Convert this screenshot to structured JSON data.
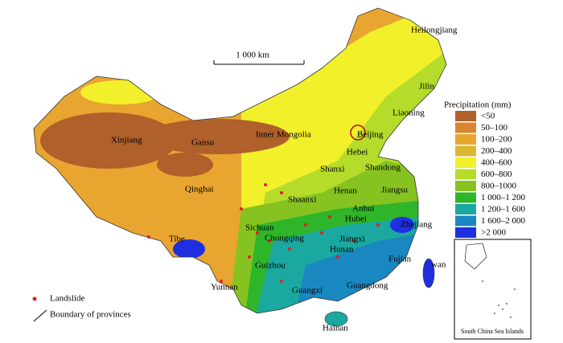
{
  "scale_bar": "1 000 km",
  "legend": {
    "title": "Precipitation (mm)",
    "items": [
      {
        "label": "<50",
        "color": "#b0602a"
      },
      {
        "label": "50–100",
        "color": "#d9862e"
      },
      {
        "label": "100–200",
        "color": "#e8a530"
      },
      {
        "label": "200–400",
        "color": "#dcb830"
      },
      {
        "label": "400–600",
        "color": "#f2f02a"
      },
      {
        "label": "600–800",
        "color": "#b5dc2a"
      },
      {
        "label": "800–1000",
        "color": "#86c321"
      },
      {
        "label": "1 000–1 200",
        "color": "#2fb52a"
      },
      {
        "label": "1 200–1 600",
        "color": "#1aa8a0"
      },
      {
        "label": "1 600–2 000",
        "color": "#1a88c0"
      },
      {
        "label": ">2 000",
        "color": "#1f2ee0"
      }
    ]
  },
  "provinces": [
    "Heilongjiang",
    "Jilin",
    "Liaoning",
    "Xinjiang",
    "Gansu",
    "Inner Mongolia",
    "Beijing",
    "Hebei",
    "Shanxi",
    "Shandong",
    "Qinghai",
    "Henan",
    "Jiangsu",
    "Shaanxi",
    "Anhui",
    "Hubei",
    "Zhejiang",
    "Sichuan",
    "Chongqing",
    "Tibe",
    "Jiangxi",
    "Hunan",
    "Fujian",
    "Guizhou",
    "wan",
    "Yunnan",
    "Guangdong",
    "Guangxi",
    "Hainan"
  ],
  "key": {
    "landslide": "Landslide",
    "boundary": "Boundary of provinces"
  },
  "inset": "South China Sea Islands"
}
